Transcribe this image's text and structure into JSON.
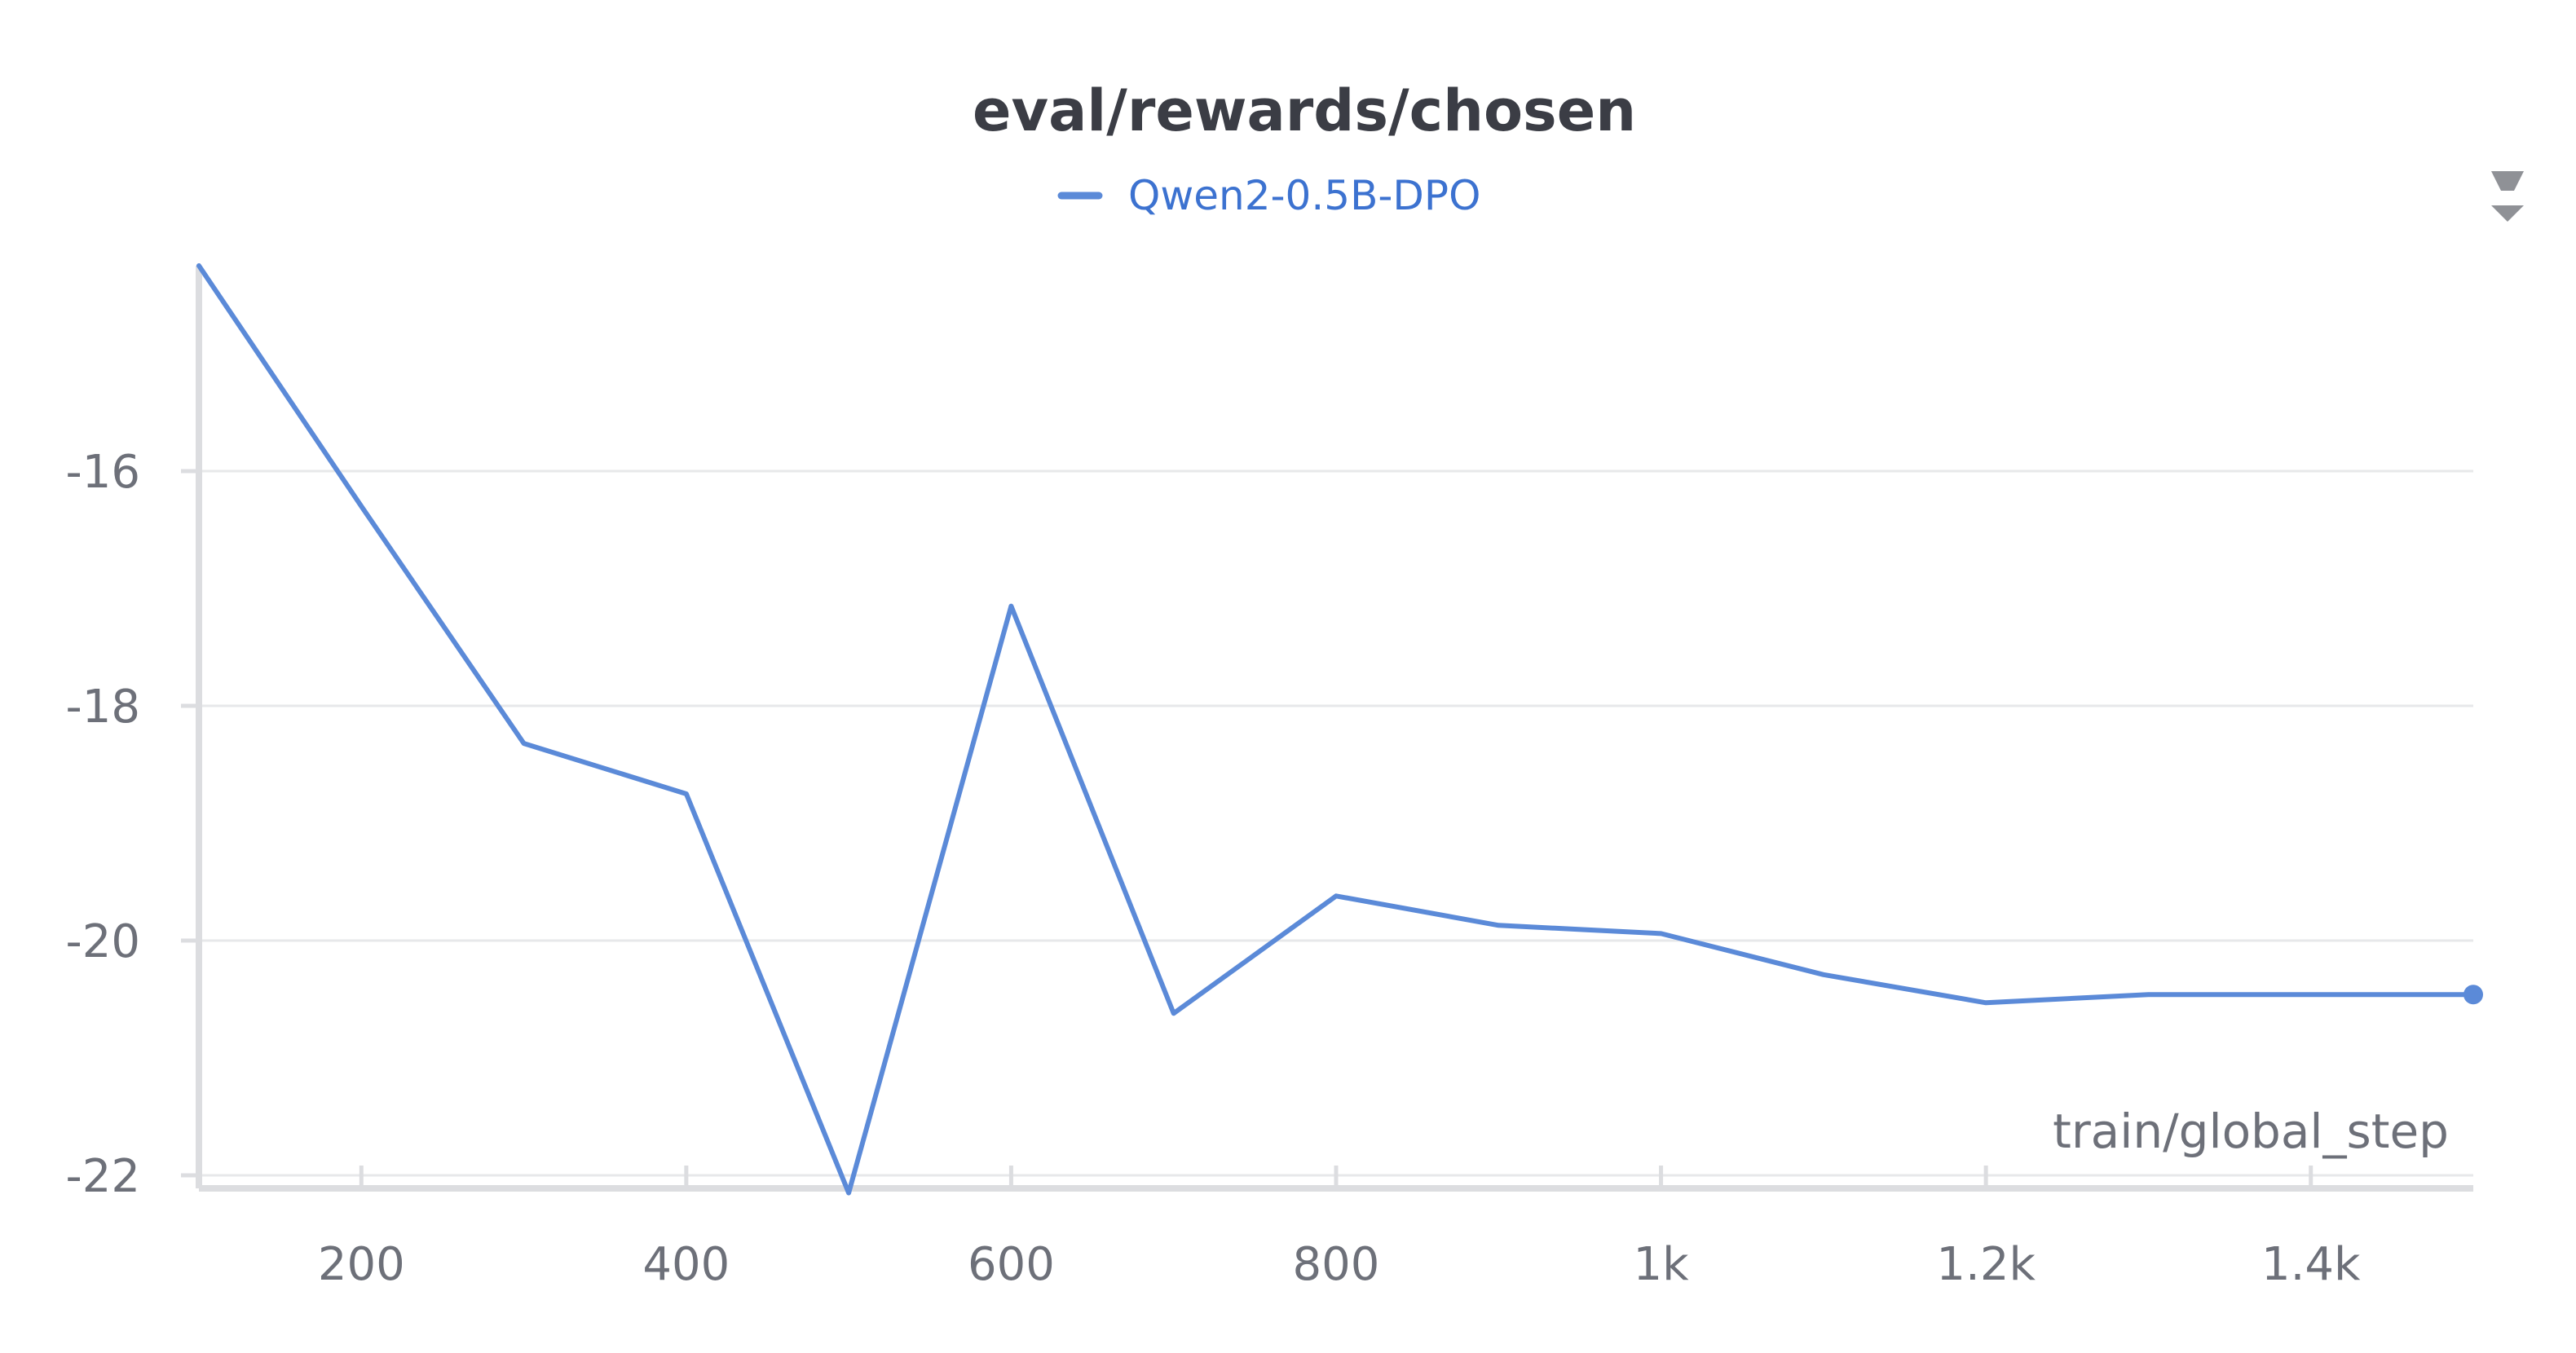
{
  "chart_data": {
    "type": "line",
    "title": "eval/rewards/chosen",
    "xlabel": "train/global_step",
    "ylabel": "",
    "xlim": [
      100,
      1500
    ],
    "ylim": [
      -22.15,
      -14.25
    ],
    "x_ticks": [
      {
        "value": 200,
        "label": "200"
      },
      {
        "value": 400,
        "label": "400"
      },
      {
        "value": 600,
        "label": "600"
      },
      {
        "value": 800,
        "label": "800"
      },
      {
        "value": 1000,
        "label": "1k"
      },
      {
        "value": 1200,
        "label": "1.2k"
      },
      {
        "value": 1400,
        "label": "1.4k"
      }
    ],
    "y_ticks": [
      {
        "value": -16,
        "label": "-16"
      },
      {
        "value": -18,
        "label": "-18"
      },
      {
        "value": -20,
        "label": "-20"
      },
      {
        "value": -22,
        "label": "-22"
      }
    ],
    "grid": true,
    "legend_position": "top-center",
    "series": [
      {
        "name": "Qwen2-0.5B-DPO",
        "color": "#5b8ad8",
        "x": [
          100,
          200,
          300,
          400,
          500,
          600,
          700,
          800,
          900,
          1000,
          1100,
          1200,
          1300,
          1400,
          1500
        ],
        "y": [
          -14.25,
          -16.3,
          -18.32,
          -18.75,
          -22.15,
          -17.15,
          -20.62,
          -19.62,
          -19.87,
          -19.94,
          -20.29,
          -20.53,
          -20.46,
          -20.46,
          -20.46
        ]
      }
    ]
  },
  "toolbar": {
    "sort_icon": "sort-arrows-icon"
  }
}
